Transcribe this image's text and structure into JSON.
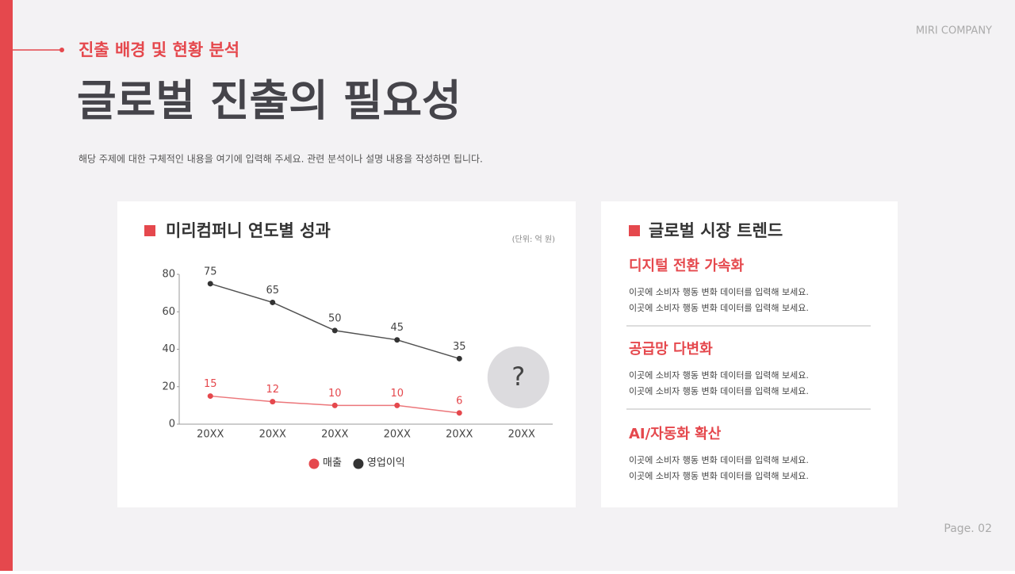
{
  "brand": "MIRI COMPANY",
  "header": {
    "kicker": "진출 배경 및 현황 분석",
    "title": "글로벌 진출의 필요성",
    "description": "해당 주제에 대한 구체적인 내용을 여기에 입력해 주세요. 관련 분석이나 설명 내용을 작성하면 됩니다."
  },
  "chart_data": {
    "type": "line",
    "title": "미리컴퍼니 연도별 성과",
    "unit": "(단위: 억 원)",
    "categories": [
      "20XX",
      "20XX",
      "20XX",
      "20XX",
      "20XX",
      "20XX"
    ],
    "series": [
      {
        "name": "매출",
        "color": "#e5484d",
        "values": [
          15,
          12,
          10,
          10,
          6,
          null
        ]
      },
      {
        "name": "영업이익",
        "color": "#333333",
        "values": [
          75,
          65,
          50,
          45,
          35,
          null
        ]
      }
    ],
    "ylim": [
      0,
      80
    ],
    "yticks": [
      0,
      20,
      40,
      60,
      80
    ],
    "annotation": "?",
    "legend": "bottom"
  },
  "trends": {
    "title": "글로벌 시장 트렌드",
    "items": [
      {
        "title": "디지털 전환 가속화",
        "lines": [
          "이곳에 소비자 행동 변화 데이터를 입력해 보세요.",
          "이곳에 소비자 행동 변화 데이터를 입력해 보세요."
        ]
      },
      {
        "title": "공급망 다변화",
        "lines": [
          "이곳에 소비자 행동 변화 데이터를 입력해 보세요.",
          "이곳에 소비자 행동 변화 데이터를 입력해 보세요."
        ]
      },
      {
        "title": "AI/자동화 확산",
        "lines": [
          "이곳에 소비자 행동 변화 데이터를 입력해 보세요.",
          "이곳에 소비자 행동 변화 데이터를 입력해 보세요."
        ]
      }
    ]
  },
  "footer": {
    "page": "Page. 02"
  }
}
